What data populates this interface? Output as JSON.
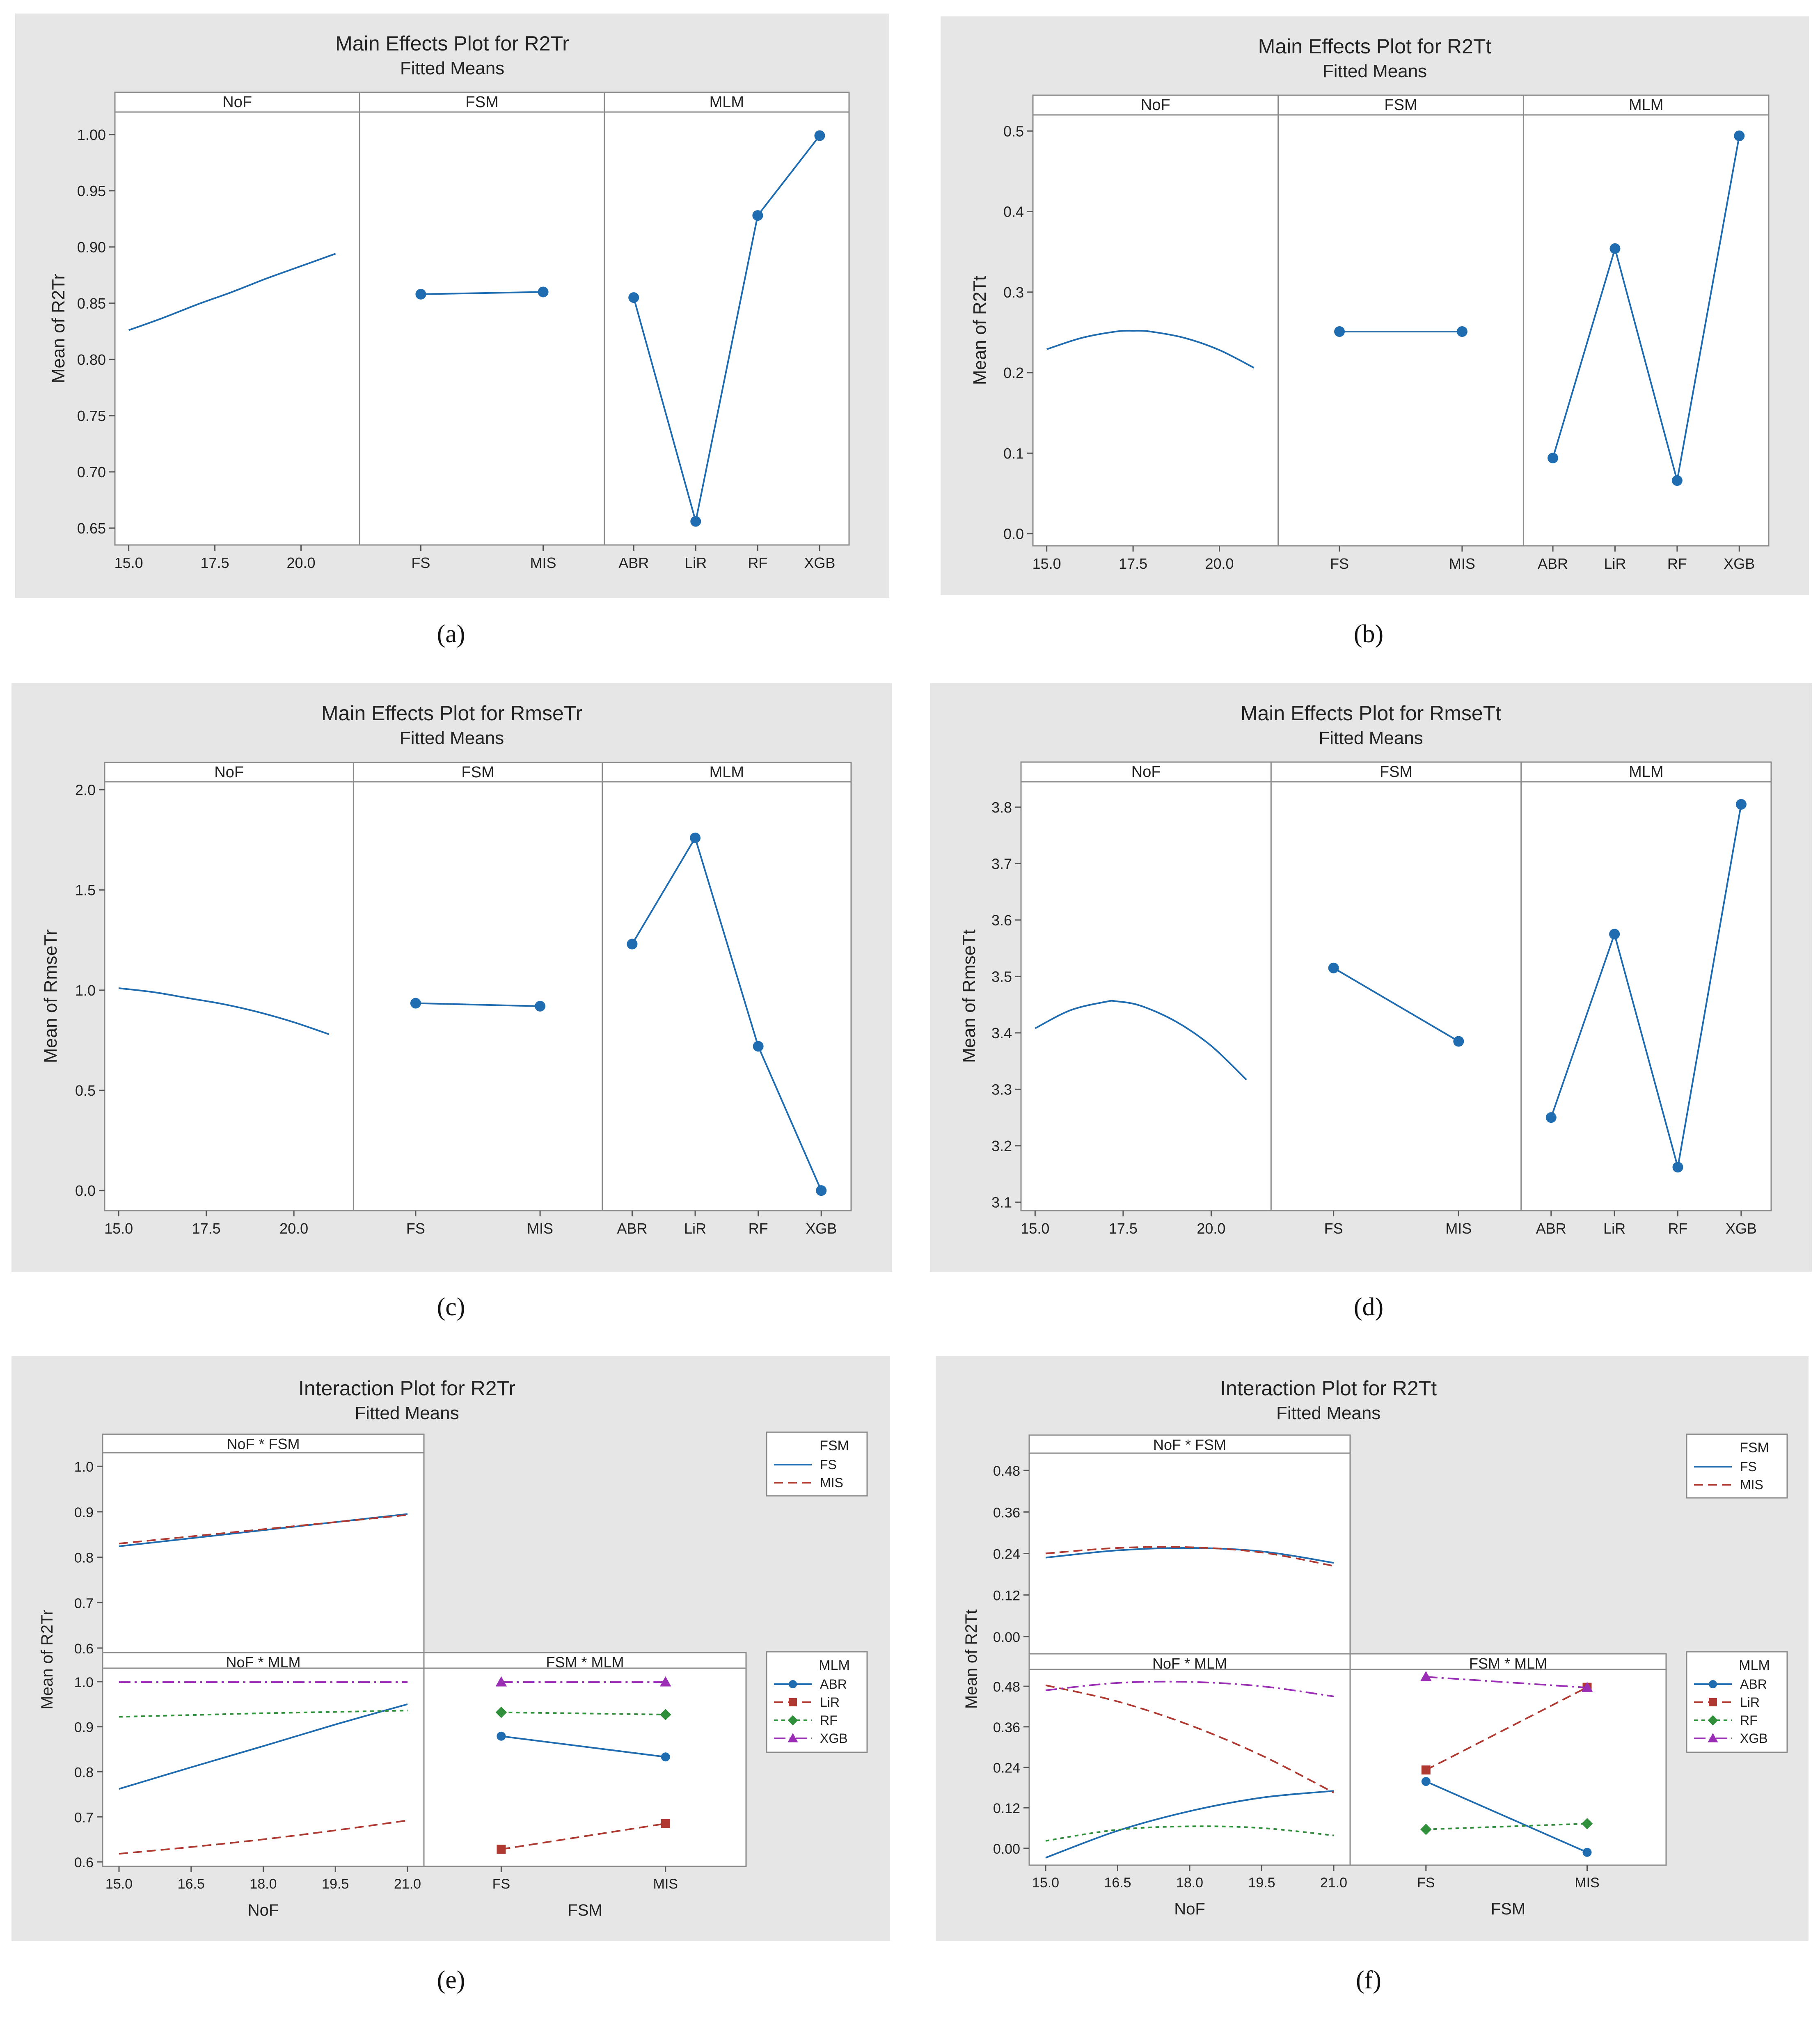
{
  "captions": [
    "(a)",
    "(b)",
    "(c)",
    "(d)",
    "(e)",
    "(f)"
  ],
  "colors": {
    "panel_bg": "#e6e6e6",
    "plot_bg": "#ffffff",
    "blue": "#1f6cb0",
    "red": "#b03a32",
    "green": "#2f8f3a",
    "purple": "#9a2fb5"
  },
  "chart_data": [
    {
      "type": "line",
      "id": "a",
      "title": "Main Effects Plot for R2Tr",
      "subtitle": "Fitted Means",
      "ylabel": "Mean of R2Tr",
      "ylim": [
        0.635,
        1.02
      ],
      "yticks": [
        0.65,
        0.7,
        0.75,
        0.8,
        0.85,
        0.9,
        0.95,
        1.0
      ],
      "ytick_labels": [
        "0.65",
        "0.70",
        "0.75",
        "0.80",
        "0.85",
        "0.90",
        "0.95",
        "1.00"
      ],
      "facets": [
        {
          "name": "NoF",
          "kind": "continuous",
          "xlim": [
            14.6,
            21.7
          ],
          "xticks": [
            15.0,
            17.5,
            20.0
          ],
          "xtick_labels": [
            "15.0",
            "17.5",
            "20.0"
          ],
          "x": [
            15.0,
            16.0,
            17.0,
            18.0,
            19.0,
            20.0,
            21.0
          ],
          "y": [
            0.826,
            0.837,
            0.849,
            0.86,
            0.872,
            0.883,
            0.894
          ]
        },
        {
          "name": "FSM",
          "kind": "categorical",
          "categories": [
            "FS",
            "MIS"
          ],
          "values": [
            0.858,
            0.86
          ]
        },
        {
          "name": "MLM",
          "kind": "categorical",
          "categories": [
            "ABR",
            "LiR",
            "RF",
            "XGB"
          ],
          "values": [
            0.855,
            0.656,
            0.928,
            0.999
          ]
        }
      ]
    },
    {
      "type": "line",
      "id": "b",
      "title": "Main Effects Plot for R2Tt",
      "subtitle": "Fitted Means",
      "ylabel": "Mean of R2Tt",
      "ylim": [
        -0.015,
        0.52
      ],
      "yticks": [
        0.0,
        0.1,
        0.2,
        0.3,
        0.4,
        0.5
      ],
      "ytick_labels": [
        "0.0",
        "0.1",
        "0.2",
        "0.3",
        "0.4",
        "0.5"
      ],
      "facets": [
        {
          "name": "NoF",
          "kind": "continuous",
          "xlim": [
            14.6,
            21.7
          ],
          "xticks": [
            15.0,
            17.5,
            20.0
          ],
          "xtick_labels": [
            "15.0",
            "17.5",
            "20.0"
          ],
          "x": [
            15.0,
            16.0,
            17.0,
            17.5,
            18.0,
            19.0,
            20.0,
            21.0
          ],
          "y": [
            0.229,
            0.243,
            0.251,
            0.252,
            0.251,
            0.243,
            0.228,
            0.206
          ]
        },
        {
          "name": "FSM",
          "kind": "categorical",
          "categories": [
            "FS",
            "MIS"
          ],
          "values": [
            0.251,
            0.251
          ]
        },
        {
          "name": "MLM",
          "kind": "categorical",
          "categories": [
            "ABR",
            "LiR",
            "RF",
            "XGB"
          ],
          "values": [
            0.094,
            0.354,
            0.066,
            0.494
          ]
        }
      ]
    },
    {
      "type": "line",
      "id": "c",
      "title": "Main Effects Plot for RmseTr",
      "subtitle": "Fitted Means",
      "ylabel": "Mean of RmseTr",
      "ylim": [
        -0.1,
        2.04
      ],
      "yticks": [
        0.0,
        0.5,
        1.0,
        1.5,
        2.0
      ],
      "ytick_labels": [
        "0.0",
        "0.5",
        "1.0",
        "1.5",
        "2.0"
      ],
      "facets": [
        {
          "name": "NoF",
          "kind": "continuous",
          "xlim": [
            14.6,
            21.7
          ],
          "xticks": [
            15.0,
            17.5,
            20.0
          ],
          "xtick_labels": [
            "15.0",
            "17.5",
            "20.0"
          ],
          "x": [
            15.0,
            16.0,
            17.0,
            18.0,
            19.0,
            20.0,
            21.0
          ],
          "y": [
            1.01,
            0.99,
            0.96,
            0.93,
            0.89,
            0.84,
            0.78
          ]
        },
        {
          "name": "FSM",
          "kind": "categorical",
          "categories": [
            "FS",
            "MIS"
          ],
          "values": [
            0.935,
            0.92
          ]
        },
        {
          "name": "MLM",
          "kind": "categorical",
          "categories": [
            "ABR",
            "LiR",
            "RF",
            "XGB"
          ],
          "values": [
            1.23,
            1.76,
            0.72,
            0.0
          ]
        }
      ]
    },
    {
      "type": "line",
      "id": "d",
      "title": "Main Effects Plot for RmseTt",
      "subtitle": "Fitted Means",
      "ylabel": "Mean of RmseTt",
      "ylim": [
        3.085,
        3.845
      ],
      "yticks": [
        3.1,
        3.2,
        3.3,
        3.4,
        3.5,
        3.6,
        3.7,
        3.8
      ],
      "ytick_labels": [
        "3.1",
        "3.2",
        "3.3",
        "3.4",
        "3.5",
        "3.6",
        "3.7",
        "3.8"
      ],
      "facets": [
        {
          "name": "NoF",
          "kind": "continuous",
          "xlim": [
            14.6,
            21.7
          ],
          "xticks": [
            15.0,
            17.5,
            20.0
          ],
          "xtick_labels": [
            "15.0",
            "17.5",
            "20.0"
          ],
          "x": [
            15.0,
            16.0,
            17.0,
            17.3,
            18.0,
            19.0,
            20.0,
            21.0
          ],
          "y": [
            3.408,
            3.44,
            3.455,
            3.456,
            3.448,
            3.42,
            3.377,
            3.317
          ]
        },
        {
          "name": "FSM",
          "kind": "categorical",
          "categories": [
            "FS",
            "MIS"
          ],
          "values": [
            3.515,
            3.385
          ]
        },
        {
          "name": "MLM",
          "kind": "categorical",
          "categories": [
            "ABR",
            "LiR",
            "RF",
            "XGB"
          ],
          "values": [
            3.25,
            3.575,
            3.162,
            3.805
          ]
        }
      ]
    },
    {
      "type": "line",
      "id": "e",
      "title": "Interaction Plot for R2Tr",
      "subtitle": "Fitted Means",
      "ylabel": "Mean of R2Tr",
      "xlabels": [
        "NoF",
        "FSM"
      ],
      "nof_ticks": [
        "15.0",
        "16.5",
        "18.0",
        "19.5",
        "21.0"
      ],
      "fsm_ticks": [
        "FS",
        "MIS"
      ],
      "top": {
        "name": "NoF * FSM",
        "ylim": [
          0.59,
          1.03
        ],
        "yticks": [
          0.6,
          0.7,
          0.8,
          0.9,
          1.0
        ],
        "ytick_labels": [
          "0.6",
          "0.7",
          "0.8",
          "0.9",
          "1.0"
        ],
        "x": [
          15.0,
          21.0
        ],
        "series": [
          {
            "name": "FS",
            "values": [
              0.824,
              0.895
            ]
          },
          {
            "name": "MIS",
            "values": [
              0.83,
              0.893
            ]
          }
        ]
      },
      "bottom_ylim": [
        0.59,
        1.03
      ],
      "bottom_yticks": [
        0.6,
        0.7,
        0.8,
        0.9,
        1.0
      ],
      "bottom_ytick_labels": [
        "0.6",
        "0.7",
        "0.8",
        "0.9",
        "1.0"
      ],
      "nof_mlm": {
        "name": "NoF * MLM",
        "x": [
          15.0,
          16.5,
          18.0,
          19.5,
          21.0
        ],
        "series": [
          {
            "name": "ABR",
            "values": [
              0.762,
              0.81,
              0.857,
              0.905,
              0.95
            ]
          },
          {
            "name": "LiR",
            "values": [
              0.618,
              0.633,
              0.65,
              0.67,
              0.692
            ]
          },
          {
            "name": "RF",
            "values": [
              0.922,
              0.926,
              0.93,
              0.933,
              0.936
            ]
          },
          {
            "name": "XGB",
            "values": [
              0.999,
              0.999,
              0.999,
              0.999,
              0.999
            ]
          }
        ]
      },
      "fsm_mlm": {
        "name": "FSM * MLM",
        "series": [
          {
            "name": "ABR",
            "values": [
              0.879,
              0.833
            ]
          },
          {
            "name": "LiR",
            "values": [
              0.628,
              0.685
            ]
          },
          {
            "name": "RF",
            "values": [
              0.932,
              0.927
            ]
          },
          {
            "name": "XGB",
            "values": [
              0.999,
              0.999
            ]
          }
        ]
      },
      "legend_fsm": {
        "title": "FSM",
        "entries": [
          "FS",
          "MIS"
        ]
      },
      "legend_mlm": {
        "title": "MLM",
        "entries": [
          "ABR",
          "LiR",
          "RF",
          "XGB"
        ]
      }
    },
    {
      "type": "line",
      "id": "f",
      "title": "Interaction Plot for R2Tt",
      "subtitle": "Fitted Means",
      "ylabel": "Mean of R2Tt",
      "xlabels": [
        "NoF",
        "FSM"
      ],
      "nof_ticks": [
        "15.0",
        "16.5",
        "18.0",
        "19.5",
        "21.0"
      ],
      "fsm_ticks": [
        "FS",
        "MIS"
      ],
      "top": {
        "name": "NoF * FSM",
        "ylim": [
          -0.05,
          0.53
        ],
        "yticks": [
          0.0,
          0.12,
          0.24,
          0.36,
          0.48
        ],
        "ytick_labels": [
          "0.00",
          "0.12",
          "0.24",
          "0.36",
          "0.48"
        ],
        "x": [
          15.0,
          16.5,
          18.0,
          19.5,
          21.0
        ],
        "series": [
          {
            "name": "FS",
            "values": [
              0.228,
              0.249,
              0.256,
              0.246,
              0.213
            ]
          },
          {
            "name": "MIS",
            "values": [
              0.24,
              0.256,
              0.258,
              0.243,
              0.204
            ]
          }
        ]
      },
      "bottom_ylim": [
        -0.05,
        0.53
      ],
      "bottom_yticks": [
        0.0,
        0.12,
        0.24,
        0.36,
        0.48
      ],
      "bottom_ytick_labels": [
        "0.00",
        "0.12",
        "0.24",
        "0.36",
        "0.48"
      ],
      "nof_mlm": {
        "name": "NoF * MLM",
        "x": [
          15.0,
          16.5,
          18.0,
          19.5,
          21.0
        ],
        "series": [
          {
            "name": "ABR",
            "values": [
              -0.028,
              0.052,
              0.11,
              0.15,
              0.17
            ]
          },
          {
            "name": "LiR",
            "values": [
              0.483,
              0.435,
              0.365,
              0.275,
              0.165
            ]
          },
          {
            "name": "RF",
            "values": [
              0.022,
              0.055,
              0.065,
              0.06,
              0.038
            ]
          },
          {
            "name": "XGB",
            "values": [
              0.468,
              0.49,
              0.493,
              0.48,
              0.45
            ]
          }
        ]
      },
      "fsm_mlm": {
        "name": "FSM * MLM",
        "series": [
          {
            "name": "ABR",
            "values": [
              0.198,
              -0.012
            ]
          },
          {
            "name": "LiR",
            "values": [
              0.232,
              0.477
            ]
          },
          {
            "name": "RF",
            "values": [
              0.056,
              0.073
            ]
          },
          {
            "name": "XGB",
            "values": [
              0.508,
              0.476
            ]
          }
        ]
      },
      "legend_fsm": {
        "title": "FSM",
        "entries": [
          "FS",
          "MIS"
        ]
      },
      "legend_mlm": {
        "title": "MLM",
        "entries": [
          "ABR",
          "LiR",
          "RF",
          "XGB"
        ]
      }
    }
  ]
}
